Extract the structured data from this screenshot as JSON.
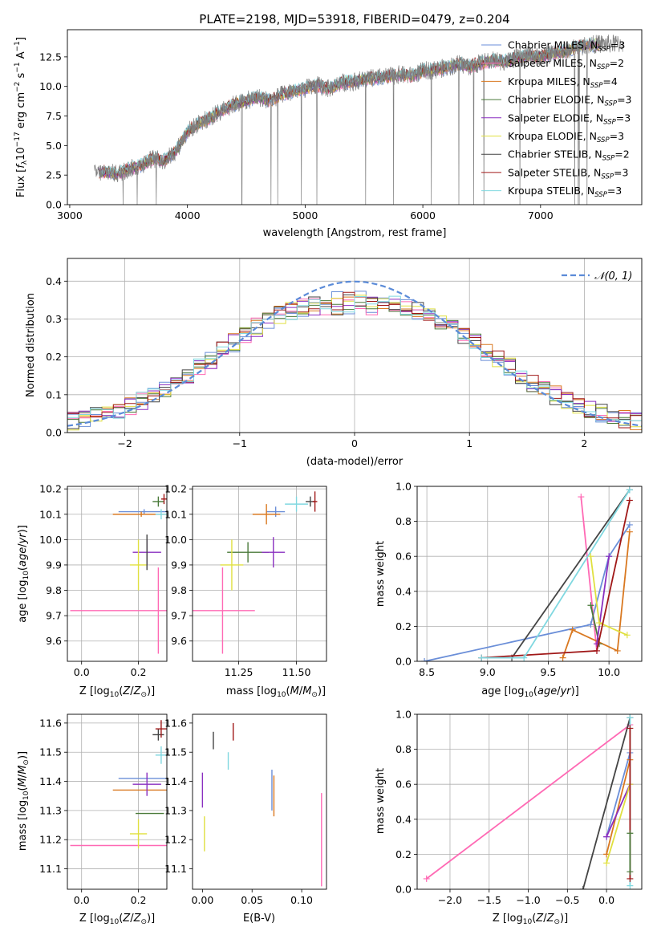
{
  "chart_data": [
    {
      "id": "spectrum",
      "type": "line",
      "title": "PLATE=2198, MJD=53918, FIBERID=0479, z=0.204",
      "xlabel": "wavelength [Angstrom, rest frame]",
      "ylabel": "Flux [f_λ 10^-17 erg cm^-2 s^-1 A^-1]",
      "xlim": [
        2980,
        7860
      ],
      "ylim": [
        0,
        14.8
      ],
      "xticks": [
        3000,
        4000,
        5000,
        6000,
        7000
      ],
      "yticks": [
        0.0,
        2.5,
        5.0,
        7.5,
        10.0,
        12.5
      ],
      "legend_position": "right",
      "legend": [
        {
          "name": "Chabrier MILES, N_SSP=3",
          "color": "#6a8ed8"
        },
        {
          "name": "Salpeter MILES, N_SSP=2",
          "color": "#ff69b4"
        },
        {
          "name": "Kroupa MILES, N_SSP=4",
          "color": "#d97820"
        },
        {
          "name": "Chabrier ELODIE, N_SSP=3",
          "color": "#4a7a3a"
        },
        {
          "name": "Salpeter ELODIE, N_SSP=3",
          "color": "#8a2fc0"
        },
        {
          "name": "Kroupa ELODIE, N_SSP=3",
          "color": "#e0e040"
        },
        {
          "name": "Chabrier STELIB, N_SSP=2",
          "color": "#444444"
        },
        {
          "name": "Salpeter STELIB, N_SSP=3",
          "color": "#a01818"
        },
        {
          "name": "Kroupa STELIB, N_SSP=3",
          "color": "#80d8e0"
        }
      ],
      "data_series": {
        "name": "data",
        "color": "#808080",
        "x": [
          3200,
          3300,
          3400,
          3500,
          3600,
          3700,
          3800,
          3900,
          4000,
          4100,
          4200,
          4300,
          4400,
          4500,
          4600,
          4700,
          4800,
          4900,
          5000,
          5100,
          5200,
          5300,
          5400,
          5500,
          5600,
          5700,
          5800,
          5900,
          6000,
          6100,
          6200,
          6300,
          6400,
          6500,
          6600,
          6700,
          6800,
          6900,
          7000,
          7100,
          7200,
          7300,
          7400,
          7500
        ],
        "y": [
          2.6,
          2.8,
          2.6,
          3.0,
          3.3,
          3.9,
          3.7,
          4.5,
          6.2,
          6.9,
          7.4,
          8.0,
          8.5,
          8.8,
          9.1,
          8.8,
          9.3,
          9.6,
          9.8,
          10.1,
          9.8,
          10.3,
          10.4,
          10.6,
          10.7,
          10.8,
          11.0,
          10.9,
          11.3,
          11.4,
          11.6,
          11.9,
          11.7,
          12.0,
          12.2,
          12.1,
          12.4,
          12.6,
          12.5,
          12.8,
          12.9,
          13.3,
          13.5,
          13.6
        ]
      }
    },
    {
      "id": "residuals",
      "type": "histogram",
      "xlabel": "(data-model)/error",
      "ylabel": "Normed distribution",
      "xlim": [
        -2.5,
        2.5
      ],
      "ylim": [
        0,
        0.46
      ],
      "xticks": [
        -2,
        -1,
        0,
        1,
        2
      ],
      "yticks": [
        0.0,
        0.1,
        0.2,
        0.3,
        0.4
      ],
      "legend": [
        {
          "name": "𝒩(0, 1)",
          "color": "#5b8bd8"
        }
      ],
      "grid": true,
      "bin_width": 0.1
    },
    {
      "id": "age-vs-Z",
      "type": "errorbar",
      "xlabel": "Z [log10(Z/Z⊙)]",
      "ylabel": "age [log10(age/yr)]",
      "xlim": [
        -0.05,
        0.3
      ],
      "ylim": [
        9.52,
        10.21
      ],
      "xticks": [
        0.0,
        0.2
      ],
      "yticks": [
        9.6,
        9.7,
        9.8,
        9.9,
        10.0,
        10.1,
        10.2
      ],
      "grid": true,
      "points": [
        {
          "color": "#6a8ed8",
          "x": 0.22,
          "xerr": 0.09,
          "y": 10.11,
          "yerr": 0.01
        },
        {
          "color": "#ff69b4",
          "x": 0.17,
          "xerr": 0.21,
          "y": 9.72,
          "yerr": 0.0
        },
        {
          "color": "#d97820",
          "x": 0.21,
          "xerr": 0.1,
          "y": 10.1,
          "yerr": 0.01
        },
        {
          "color": "#4a7a3a",
          "x": 0.27,
          "xerr": 0.02,
          "y": 10.15,
          "yerr": 0.02
        },
        {
          "color": "#8a2fc0",
          "x": 0.23,
          "xerr": 0.05,
          "y": 9.95,
          "yerr": 0.05
        },
        {
          "color": "#e0e040",
          "x": 0.2,
          "xerr": 0.03,
          "y": 9.9,
          "yerr": 0.1
        },
        {
          "color": "#444444",
          "x": 0.23,
          "xerr": 0.0,
          "y": 9.95,
          "yerr": 0.07
        },
        {
          "color": "#a01818",
          "x": 0.29,
          "xerr": 0.01,
          "y": 10.16,
          "yerr": 0.02
        },
        {
          "color": "#80d8e0",
          "x": 0.28,
          "xerr": 0.02,
          "y": 10.1,
          "yerr": 0.02
        },
        {
          "color": "#ff69b4",
          "x": 0.27,
          "xerr": 0.0,
          "y": 9.72,
          "yerr": 0.17
        }
      ]
    },
    {
      "id": "age-vs-mass",
      "type": "errorbar",
      "xlabel": "mass [log10(M/M⊙)]",
      "xlim": [
        11.05,
        11.63
      ],
      "ylim": [
        9.52,
        10.21
      ],
      "xticks": [
        11.25,
        11.5
      ],
      "yticks": [
        9.6,
        9.7,
        9.8,
        9.9,
        10.0,
        10.1,
        10.2
      ],
      "grid": true,
      "points": [
        {
          "color": "#6a8ed8",
          "x": 11.41,
          "xerr": 0.04,
          "y": 10.11,
          "yerr": 0.02
        },
        {
          "color": "#ff69b4",
          "x": 11.18,
          "xerr": 0.14,
          "y": 9.72,
          "yerr": 0.17
        },
        {
          "color": "#d97820",
          "x": 11.37,
          "xerr": 0.06,
          "y": 10.1,
          "yerr": 0.04
        },
        {
          "color": "#4a7a3a",
          "x": 11.29,
          "xerr": 0.09,
          "y": 9.95,
          "yerr": 0.04
        },
        {
          "color": "#8a2fc0",
          "x": 11.4,
          "xerr": 0.05,
          "y": 9.95,
          "yerr": 0.06
        },
        {
          "color": "#e0e040",
          "x": 11.22,
          "xerr": 0.05,
          "y": 9.9,
          "yerr": 0.1
        },
        {
          "color": "#444444",
          "x": 11.56,
          "xerr": 0.02,
          "y": 10.15,
          "yerr": 0.02
        },
        {
          "color": "#a01818",
          "x": 11.58,
          "xerr": 0.01,
          "y": 10.15,
          "yerr": 0.04
        },
        {
          "color": "#80d8e0",
          "x": 11.5,
          "xerr": 0.05,
          "y": 10.14,
          "yerr": 0.03
        }
      ]
    },
    {
      "id": "weight-vs-age",
      "type": "line",
      "xlabel": "age [log10(age/yr)]",
      "ylabel": "mass weight",
      "xlim": [
        8.42,
        10.27
      ],
      "ylim": [
        0,
        1.0
      ],
      "xticks": [
        8.5,
        9.0,
        9.5,
        10.0
      ],
      "yticks": [
        0.0,
        0.2,
        0.4,
        0.6,
        0.8,
        1.0
      ],
      "grid": true,
      "series": [
        {
          "color": "#6a8ed8",
          "x": [
            8.48,
            9.85,
            10.0,
            10.17
          ],
          "y": [
            0.0,
            0.21,
            0.6,
            0.78
          ]
        },
        {
          "color": "#ff69b4",
          "x": [
            9.77,
            9.9
          ],
          "y": [
            0.94,
            0.06
          ]
        },
        {
          "color": "#d97820",
          "x": [
            9.62,
            9.7,
            10.07,
            10.17
          ],
          "y": [
            0.02,
            0.18,
            0.06,
            0.74
          ]
        },
        {
          "color": "#4a7a3a",
          "x": [
            9.85,
            9.92
          ],
          "y": [
            0.32,
            0.1
          ]
        },
        {
          "color": "#8a2fc0",
          "x": [
            9.9,
            10.0
          ],
          "y": [
            0.1,
            0.6
          ]
        },
        {
          "color": "#e0e040",
          "x": [
            9.85,
            9.92,
            10.15
          ],
          "y": [
            0.6,
            0.22,
            0.15
          ]
        },
        {
          "color": "#444444",
          "x": [
            9.2,
            10.17
          ],
          "y": [
            0.02,
            0.98
          ]
        },
        {
          "color": "#a01818",
          "x": [
            8.95,
            9.9,
            10.17
          ],
          "y": [
            0.02,
            0.06,
            0.92
          ]
        },
        {
          "color": "#80d8e0",
          "x": [
            8.95,
            9.3,
            10.17
          ],
          "y": [
            0.02,
            0.02,
            0.98
          ]
        }
      ]
    },
    {
      "id": "mass-vs-Z",
      "type": "errorbar",
      "xlabel": "Z [log10(Z/Z⊙)]",
      "ylabel": "mass [log10(M/M⊙)]",
      "xlim": [
        -0.05,
        0.3
      ],
      "ylim": [
        11.03,
        11.63
      ],
      "xticks": [
        0.0,
        0.2
      ],
      "yticks": [
        11.1,
        11.2,
        11.3,
        11.4,
        11.5,
        11.6
      ],
      "grid": true,
      "points": [
        {
          "color": "#6a8ed8",
          "x": 0.22,
          "xerr": 0.09,
          "y": 11.41,
          "yerr": 0.0
        },
        {
          "color": "#ff69b4",
          "x": 0.17,
          "xerr": 0.21,
          "y": 11.18,
          "yerr": 0.0
        },
        {
          "color": "#d97820",
          "x": 0.21,
          "xerr": 0.1,
          "y": 11.37,
          "yerr": 0.0
        },
        {
          "color": "#4a7a3a",
          "x": 0.24,
          "xerr": 0.05,
          "y": 11.29,
          "yerr": 0.0
        },
        {
          "color": "#8a2fc0",
          "x": 0.23,
          "xerr": 0.05,
          "y": 11.39,
          "yerr": 0.04
        },
        {
          "color": "#e0e040",
          "x": 0.2,
          "xerr": 0.03,
          "y": 11.22,
          "yerr": 0.05
        },
        {
          "color": "#444444",
          "x": 0.27,
          "xerr": 0.02,
          "y": 11.56,
          "yerr": 0.02
        },
        {
          "color": "#a01818",
          "x": 0.28,
          "xerr": 0.02,
          "y": 11.58,
          "yerr": 0.03
        },
        {
          "color": "#80d8e0",
          "x": 0.28,
          "xerr": 0.02,
          "y": 11.49,
          "yerr": 0.03
        }
      ]
    },
    {
      "id": "mass-vs-EBV",
      "type": "errorbar",
      "xlabel": "E(B-V)",
      "xlim": [
        -0.01,
        0.125
      ],
      "ylim": [
        11.03,
        11.63
      ],
      "xticks": [
        0.0,
        0.05,
        0.1
      ],
      "yticks": [
        11.1,
        11.2,
        11.3,
        11.4,
        11.5,
        11.6
      ],
      "grid": false,
      "points": [
        {
          "color": "#6a8ed8",
          "x": 0.07,
          "xerr": 0.0,
          "y": 11.37,
          "yerr": 0.07
        },
        {
          "color": "#d97820",
          "x": 0.072,
          "xerr": 0.0,
          "y": 11.35,
          "yerr": 0.07
        },
        {
          "color": "#8a2fc0",
          "x": 0.0,
          "xerr": 0.0,
          "y": 11.37,
          "yerr": 0.06
        },
        {
          "color": "#e0e040",
          "x": 0.002,
          "xerr": 0.0,
          "y": 11.22,
          "yerr": 0.06
        },
        {
          "color": "#444444",
          "x": 0.011,
          "xerr": 0.0,
          "y": 11.54,
          "yerr": 0.03
        },
        {
          "color": "#a01818",
          "x": 0.031,
          "xerr": 0.0,
          "y": 11.57,
          "yerr": 0.03
        },
        {
          "color": "#80d8e0",
          "x": 0.026,
          "xerr": 0.0,
          "y": 11.47,
          "yerr": 0.03
        },
        {
          "color": "#ff69b4",
          "x": 0.12,
          "xerr": 0.0,
          "y": 11.2,
          "yerr": 0.16
        }
      ]
    },
    {
      "id": "weight-vs-Z",
      "type": "line",
      "xlabel": "Z [log10(Z/Z⊙)]",
      "ylabel": "mass weight",
      "xlim": [
        -2.42,
        0.45
      ],
      "ylim": [
        0,
        1.0
      ],
      "xticks": [
        -2.0,
        -1.5,
        -1.0,
        -0.5,
        0.0
      ],
      "yticks": [
        0.0,
        0.2,
        0.4,
        0.6,
        0.8,
        1.0
      ],
      "grid": true,
      "series": [
        {
          "color": "#ff69b4",
          "x": [
            -2.3,
            0.3
          ],
          "y": [
            0.06,
            0.94
          ]
        },
        {
          "color": "#444444",
          "x": [
            -0.3,
            0.3
          ],
          "y": [
            0.0,
            0.98
          ]
        },
        {
          "color": "#6a8ed8",
          "x": [
            0.0,
            0.3
          ],
          "y": [
            0.3,
            0.78
          ]
        },
        {
          "color": "#d97820",
          "x": [
            0.0,
            0.3
          ],
          "y": [
            0.2,
            0.74
          ]
        },
        {
          "color": "#8a2fc0",
          "x": [
            0.0,
            0.3
          ],
          "y": [
            0.3,
            0.6
          ]
        },
        {
          "color": "#e0e040",
          "x": [
            0.0,
            0.3
          ],
          "y": [
            0.15,
            0.6
          ]
        },
        {
          "color": "#80d8e0",
          "x": [
            0.3,
            0.3
          ],
          "y": [
            0.02,
            0.98
          ]
        },
        {
          "color": "#a01818",
          "x": [
            0.3,
            0.3
          ],
          "y": [
            0.06,
            0.92
          ]
        },
        {
          "color": "#4a7a3a",
          "x": [
            0.3,
            0.3
          ],
          "y": [
            0.1,
            0.32
          ]
        }
      ]
    }
  ]
}
